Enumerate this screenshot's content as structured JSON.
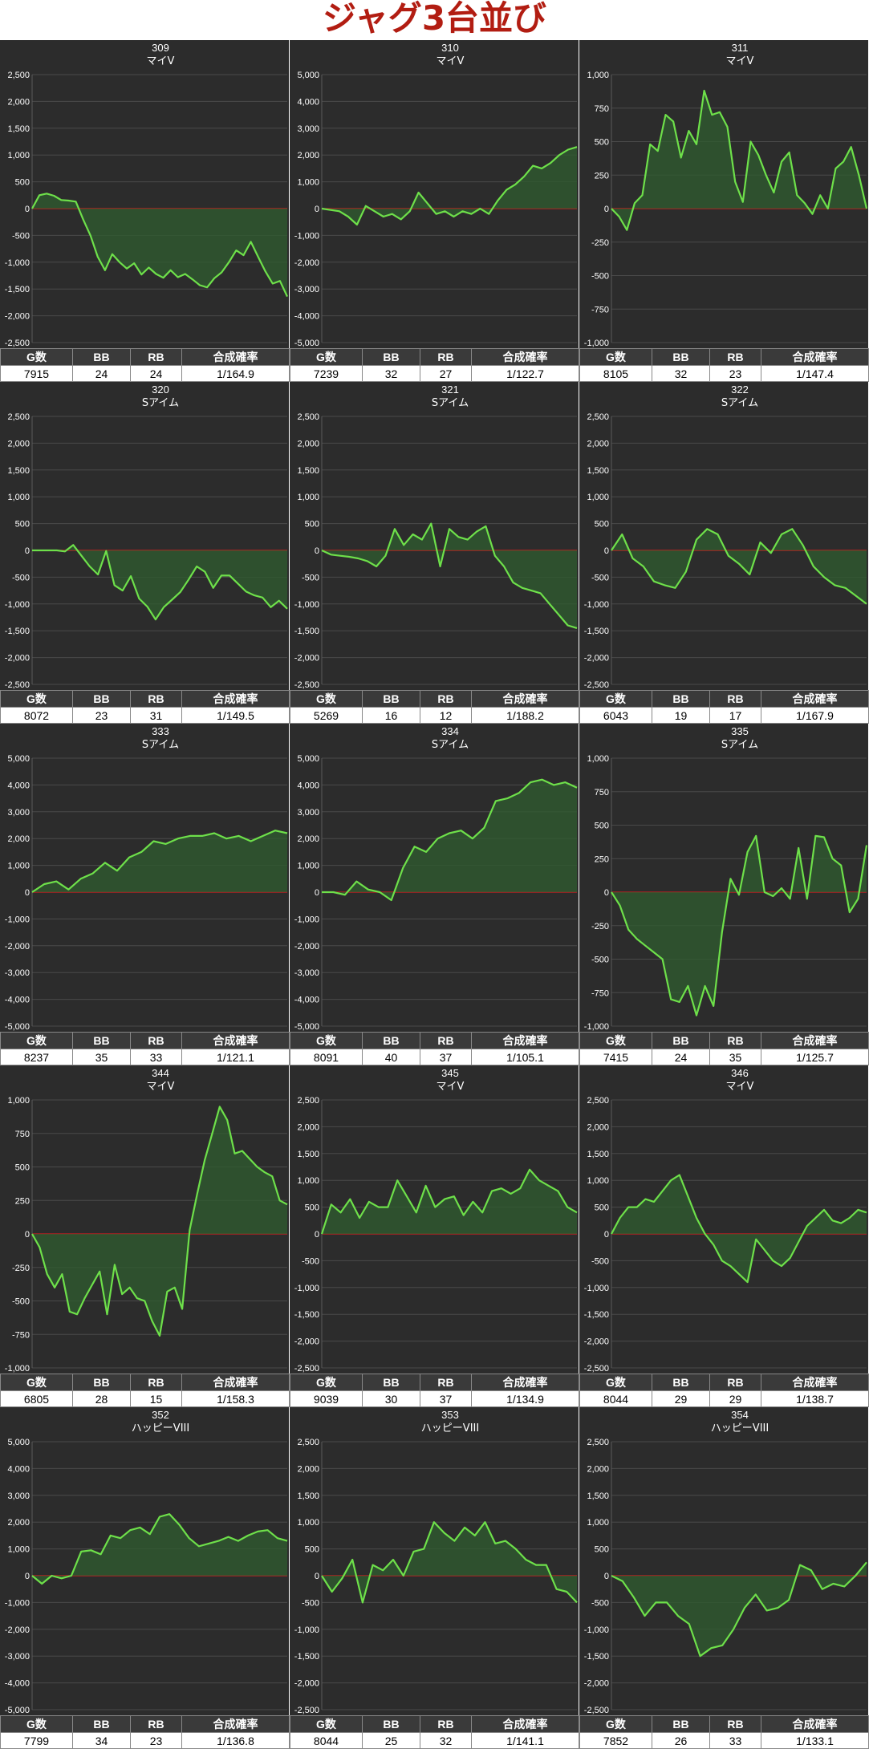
{
  "page": {
    "title": "ジャグ3台並び"
  },
  "stat_headers": [
    "G数",
    "BB",
    "RB",
    "合成確率"
  ],
  "chart_data": [
    {
      "type": "area",
      "number": "309",
      "model": "マイV",
      "ylim": [
        -2500,
        2500
      ],
      "ticks": [
        -2500,
        -2000,
        -1500,
        -1000,
        -500,
        0,
        500,
        1000,
        1500,
        2000,
        2500
      ],
      "values": [
        0,
        250,
        280,
        240,
        160,
        150,
        130,
        -200,
        -500,
        -900,
        -1150,
        -850,
        -1000,
        -1120,
        -1020,
        -1230,
        -1100,
        -1220,
        -1290,
        -1150,
        -1280,
        -1220,
        -1320,
        -1430,
        -1470,
        -1300,
        -1190,
        -1000,
        -780,
        -870,
        -620,
        -900,
        -1170,
        -1400,
        -1350,
        -1640
      ],
      "stats": {
        "g": "7915",
        "bb": "24",
        "rb": "24",
        "prob": "1/164.9"
      }
    },
    {
      "type": "area",
      "number": "310",
      "model": "マイV",
      "ylim": [
        -5000,
        5000
      ],
      "ticks": [
        -5000,
        -4000,
        -3000,
        -2000,
        -1000,
        0,
        1000,
        2000,
        3000,
        4000,
        5000
      ],
      "values": [
        0,
        -50,
        -100,
        -300,
        -600,
        100,
        -100,
        -300,
        -200,
        -400,
        -100,
        600,
        200,
        -200,
        -100,
        -300,
        -100,
        -200,
        0,
        -200,
        300,
        700,
        900,
        1200,
        1600,
        1500,
        1700,
        2000,
        2200,
        2300
      ],
      "stats": {
        "g": "7239",
        "bb": "32",
        "rb": "27",
        "prob": "1/122.7"
      }
    },
    {
      "type": "area",
      "number": "311",
      "model": "マイV",
      "ylim": [
        -1000,
        1000
      ],
      "ticks": [
        -1000,
        -750,
        -500,
        -250,
        0,
        250,
        500,
        750,
        1000
      ],
      "values": [
        0,
        -60,
        -160,
        40,
        100,
        480,
        430,
        700,
        650,
        380,
        580,
        480,
        880,
        700,
        720,
        610,
        200,
        50,
        500,
        400,
        250,
        120,
        350,
        420,
        100,
        40,
        -40,
        100,
        0,
        300,
        350,
        460,
        250,
        0
      ],
      "stats": {
        "g": "8105",
        "bb": "32",
        "rb": "23",
        "prob": "1/147.4"
      }
    },
    {
      "type": "area",
      "number": "320",
      "model": "Sアイム",
      "ylim": [
        -2500,
        2500
      ],
      "ticks": [
        -2500,
        -2000,
        -1500,
        -1000,
        -500,
        0,
        500,
        1000,
        1500,
        2000,
        2500
      ],
      "values": [
        0,
        0,
        0,
        0,
        -20,
        100,
        -100,
        -300,
        -450,
        -10,
        -650,
        -750,
        -480,
        -900,
        -1050,
        -1290,
        -1060,
        -920,
        -780,
        -550,
        -300,
        -400,
        -700,
        -470,
        -470,
        -620,
        -770,
        -840,
        -880,
        -1060,
        -940,
        -1090
      ],
      "stats": {
        "g": "8072",
        "bb": "23",
        "rb": "31",
        "prob": "1/149.5"
      }
    },
    {
      "type": "area",
      "number": "321",
      "model": "Sアイム",
      "ylim": [
        -2500,
        2500
      ],
      "ticks": [
        -2500,
        -2000,
        -1500,
        -1000,
        -500,
        0,
        500,
        1000,
        1500,
        2000,
        2500
      ],
      "values": [
        0,
        -80,
        -100,
        -120,
        -150,
        -200,
        -300,
        -100,
        400,
        100,
        300,
        200,
        500,
        -300,
        400,
        250,
        200,
        350,
        450,
        -100,
        -300,
        -600,
        -700,
        -750,
        -800,
        -1000,
        -1200,
        -1400,
        -1450
      ],
      "stats": {
        "g": "5269",
        "bb": "16",
        "rb": "12",
        "prob": "1/188.2"
      }
    },
    {
      "type": "area",
      "number": "322",
      "model": "Sアイム",
      "ylim": [
        -2500,
        2500
      ],
      "ticks": [
        -2500,
        -2000,
        -1500,
        -1000,
        -500,
        0,
        500,
        1000,
        1500,
        2000,
        2500
      ],
      "values": [
        0,
        300,
        -150,
        -300,
        -580,
        -650,
        -700,
        -400,
        200,
        400,
        300,
        -100,
        -250,
        -450,
        150,
        -50,
        300,
        400,
        100,
        -300,
        -500,
        -650,
        -700,
        -850,
        -1000
      ],
      "stats": {
        "g": "6043",
        "bb": "19",
        "rb": "17",
        "prob": "1/167.9"
      }
    },
    {
      "type": "area",
      "number": "333",
      "model": "Sアイム",
      "ylim": [
        -5000,
        5000
      ],
      "ticks": [
        -5000,
        -4000,
        -3000,
        -2000,
        -1000,
        0,
        1000,
        2000,
        3000,
        4000,
        5000
      ],
      "values": [
        0,
        300,
        400,
        100,
        500,
        700,
        1100,
        800,
        1300,
        1500,
        1900,
        1800,
        2000,
        2100,
        2100,
        2200,
        2000,
        2100,
        1900,
        2100,
        2300,
        2200
      ],
      "stats": {
        "g": "8237",
        "bb": "35",
        "rb": "33",
        "prob": "1/121.1"
      }
    },
    {
      "type": "area",
      "number": "334",
      "model": "Sアイム",
      "ylim": [
        -5000,
        5000
      ],
      "ticks": [
        -5000,
        -4000,
        -3000,
        -2000,
        -1000,
        0,
        1000,
        2000,
        3000,
        4000,
        5000
      ],
      "values": [
        0,
        0,
        -100,
        400,
        100,
        0,
        -300,
        900,
        1700,
        1500,
        2000,
        2200,
        2300,
        2000,
        2400,
        3400,
        3500,
        3700,
        4100,
        4200,
        4000,
        4100,
        3900
      ],
      "stats": {
        "g": "8091",
        "bb": "40",
        "rb": "37",
        "prob": "1/105.1"
      }
    },
    {
      "type": "area",
      "number": "335",
      "model": "Sアイム",
      "ylim": [
        -1000,
        1000
      ],
      "ticks": [
        -1000,
        -750,
        -500,
        -250,
        0,
        250,
        500,
        750,
        1000
      ],
      "values": [
        0,
        -100,
        -280,
        -350,
        -400,
        -450,
        -500,
        -800,
        -820,
        -700,
        -920,
        -700,
        -850,
        -300,
        100,
        -20,
        300,
        420,
        0,
        -30,
        30,
        -50,
        330,
        -50,
        420,
        410,
        250,
        200,
        -150,
        -50,
        350
      ],
      "stats": {
        "g": "7415",
        "bb": "24",
        "rb": "35",
        "prob": "1/125.7"
      }
    },
    {
      "type": "area",
      "number": "344",
      "model": "マイV",
      "ylim": [
        -1000,
        1000
      ],
      "ticks": [
        -1000,
        -750,
        -500,
        -250,
        0,
        250,
        500,
        750,
        1000
      ],
      "values": [
        0,
        -100,
        -300,
        -400,
        -300,
        -580,
        -600,
        -480,
        -380,
        -280,
        -600,
        -230,
        -450,
        -400,
        -480,
        -500,
        -650,
        -760,
        -430,
        -400,
        -560,
        30,
        300,
        550,
        750,
        950,
        850,
        600,
        620,
        560,
        500,
        460,
        430,
        250,
        220
      ],
      "stats": {
        "g": "6805",
        "bb": "28",
        "rb": "15",
        "prob": "1/158.3"
      }
    },
    {
      "type": "area",
      "number": "345",
      "model": "マイV",
      "ylim": [
        -2500,
        2500
      ],
      "ticks": [
        -2500,
        -2000,
        -1500,
        -1000,
        -500,
        0,
        500,
        1000,
        1500,
        2000,
        2500
      ],
      "values": [
        0,
        550,
        400,
        650,
        300,
        600,
        500,
        500,
        1000,
        700,
        400,
        900,
        500,
        650,
        700,
        350,
        600,
        400,
        800,
        850,
        750,
        850,
        1200,
        1000,
        900,
        800,
        500,
        400
      ],
      "stats": {
        "g": "9039",
        "bb": "30",
        "rb": "37",
        "prob": "1/134.9"
      }
    },
    {
      "type": "area",
      "number": "346",
      "model": "マイV",
      "ylim": [
        -2500,
        2500
      ],
      "ticks": [
        -2500,
        -2000,
        -1500,
        -1000,
        -500,
        0,
        500,
        1000,
        1500,
        2000,
        2500
      ],
      "values": [
        0,
        300,
        500,
        500,
        650,
        600,
        800,
        1000,
        1100,
        700,
        300,
        0,
        -200,
        -500,
        -600,
        -750,
        -900,
        -100,
        -300,
        -500,
        -600,
        -450,
        -150,
        150,
        300,
        450,
        250,
        200,
        300,
        450,
        400
      ],
      "stats": {
        "g": "8044",
        "bb": "29",
        "rb": "29",
        "prob": "1/138.7"
      }
    },
    {
      "type": "area",
      "number": "352",
      "model": "ハッピーVIII",
      "ylim": [
        -5000,
        5000
      ],
      "ticks": [
        -5000,
        -4000,
        -3000,
        -2000,
        -1000,
        0,
        1000,
        2000,
        3000,
        4000,
        5000
      ],
      "values": [
        0,
        -300,
        0,
        -100,
        0,
        900,
        950,
        800,
        1500,
        1400,
        1700,
        1800,
        1550,
        2200,
        2300,
        1900,
        1400,
        1100,
        1200,
        1300,
        1450,
        1300,
        1500,
        1650,
        1700,
        1400,
        1300
      ],
      "stats": {
        "g": "7799",
        "bb": "34",
        "rb": "23",
        "prob": "1/136.8"
      }
    },
    {
      "type": "area",
      "number": "353",
      "model": "ハッピーVIII",
      "ylim": [
        -2500,
        2500
      ],
      "ticks": [
        -2500,
        -2000,
        -1500,
        -1000,
        -500,
        0,
        500,
        1000,
        1500,
        2000,
        2500
      ],
      "values": [
        0,
        -300,
        -50,
        300,
        -500,
        200,
        100,
        300,
        0,
        450,
        500,
        1000,
        800,
        650,
        900,
        750,
        1000,
        600,
        650,
        500,
        300,
        200,
        200,
        -250,
        -300,
        -500
      ],
      "stats": {
        "g": "8044",
        "bb": "25",
        "rb": "32",
        "prob": "1/141.1"
      }
    },
    {
      "type": "area",
      "number": "354",
      "model": "ハッピーVIII",
      "ylim": [
        -2500,
        2500
      ],
      "ticks": [
        -2500,
        -2000,
        -1500,
        -1000,
        -500,
        0,
        500,
        1000,
        1500,
        2000,
        2500
      ],
      "values": [
        0,
        -100,
        -400,
        -750,
        -500,
        -500,
        -750,
        -900,
        -1500,
        -1350,
        -1300,
        -1000,
        -600,
        -350,
        -650,
        -600,
        -450,
        200,
        100,
        -250,
        -150,
        -200,
        0,
        250
      ],
      "stats": {
        "g": "7852",
        "bb": "26",
        "rb": "33",
        "prob": "1/133.1"
      }
    }
  ]
}
